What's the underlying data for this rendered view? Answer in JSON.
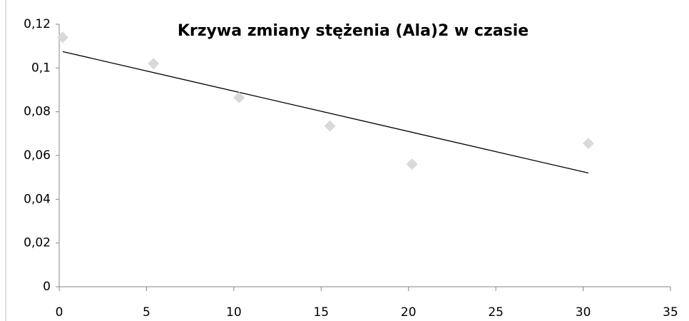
{
  "chart_data": {
    "type": "scatter",
    "title": "Krzywa zmiany stężenia (Ala)2 w czasie",
    "series": [
      {
        "color": "#d9d9d9",
        "x": [
          0.2,
          5.4,
          10.3,
          15.5,
          20.2,
          30.3
        ],
        "values": [
          0.114,
          0.102,
          0.0865,
          0.0735,
          0.056,
          0.0655
        ]
      }
    ],
    "trendline": {
      "color": "#000000",
      "x": [
        0.2,
        30.3
      ],
      "values": [
        0.1075,
        0.052
      ]
    },
    "xlim": [
      0,
      35
    ],
    "xticks": [
      0,
      5,
      10,
      15,
      20,
      25,
      30,
      35
    ],
    "ylim": [
      0,
      0.12
    ],
    "yticks": [
      0,
      {
        "value": 0.02,
        "label": "0,02"
      },
      {
        "value": 0.04,
        "label": "0,04"
      },
      {
        "value": 0.06,
        "label": "0,06"
      },
      {
        "value": 0.08,
        "label": "0,08"
      },
      {
        "value": 0.1,
        "label": "0,1"
      },
      {
        "value": 0.12,
        "label": "0,12"
      }
    ],
    "grid": false
  }
}
